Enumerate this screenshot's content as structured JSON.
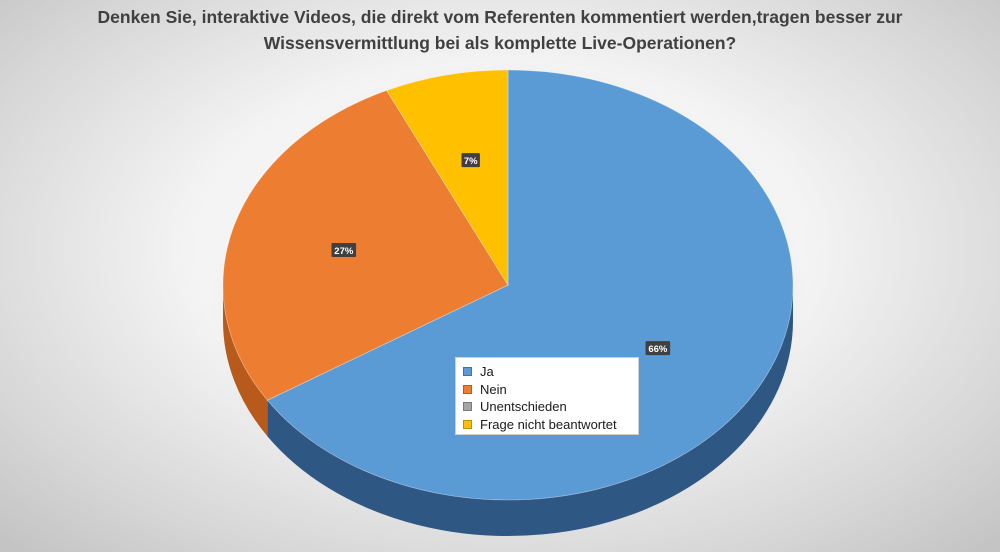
{
  "title_line1": "Denken Sie, interaktive Videos, die direkt vom Referenten kommentiert werden,tragen besser zur",
  "title_line2": "Wissensvermittlung bei als komplette Live-Operationen?",
  "chart_data": {
    "type": "pie",
    "title": "Denken Sie, interaktive Videos, die direkt vom Referenten kommentiert werden,tragen besser zur Wissensvermittlung bei als komplette Live-Operationen?",
    "categories": [
      "Ja",
      "Nein",
      "Unentschieden",
      "Frage nicht beantwortet"
    ],
    "values": [
      66,
      27,
      0,
      7
    ],
    "value_labels": [
      "66%",
      "27%",
      "",
      "7%"
    ],
    "colors": [
      "#5B9BD5",
      "#ED7D31",
      "#A5A5A5",
      "#FFC000"
    ],
    "side_colors": [
      "#2f5783",
      "#b85a1c",
      "#7a7a7a",
      "#c79400"
    ],
    "legend_position": "bottom-center (inside pie)",
    "style": "3d"
  },
  "legend": {
    "items": [
      {
        "label": "Ja",
        "color": "#5B9BD5"
      },
      {
        "label": "Nein",
        "color": "#ED7D31"
      },
      {
        "label": "Unentschieden",
        "color": "#A5A5A5"
      },
      {
        "label": "Frage nicht beantwortet",
        "color": "#FFC000"
      }
    ]
  }
}
